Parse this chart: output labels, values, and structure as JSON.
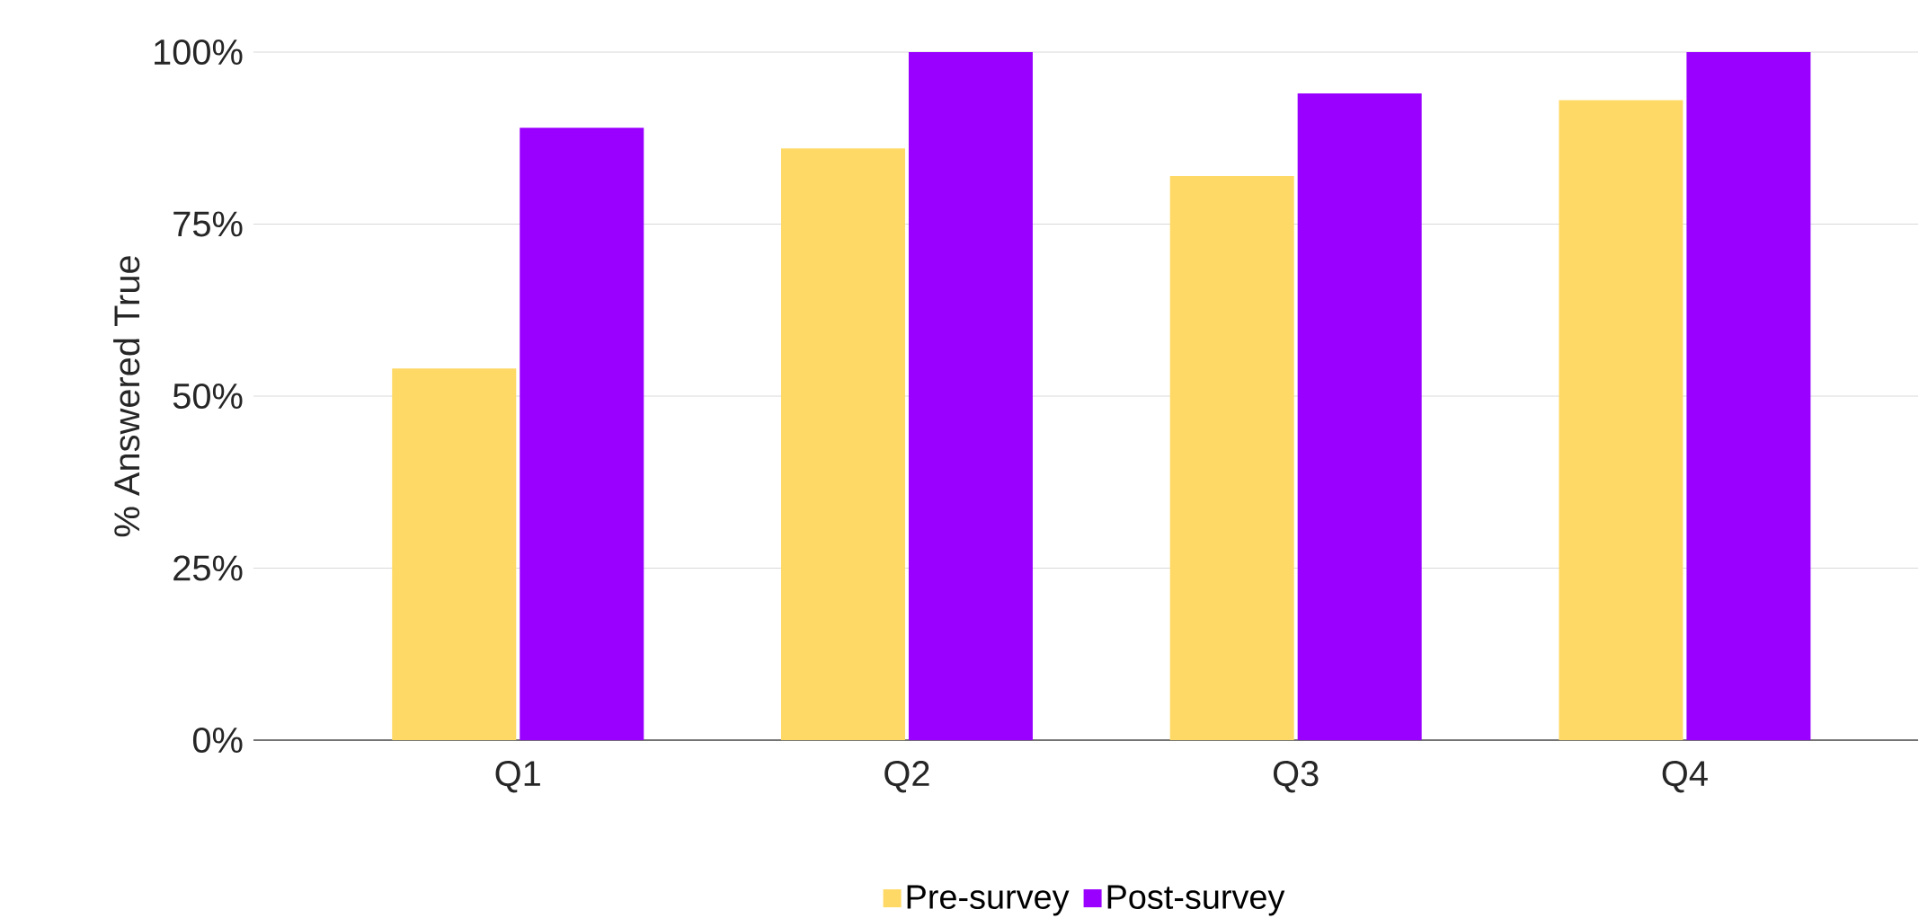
{
  "chart_data": {
    "type": "bar",
    "ylabel": "% Answered True",
    "categories": [
      "Q1",
      "Q2",
      "Q3",
      "Q4"
    ],
    "series": [
      {
        "name": "Pre-survey",
        "color": "#ffd966",
        "values": [
          54,
          86,
          82,
          93
        ]
      },
      {
        "name": "Post-survey",
        "color": "#9900ff",
        "values": [
          89,
          100,
          94,
          100
        ]
      }
    ],
    "ylim": [
      0,
      100
    ],
    "yticks": [
      {
        "value": 0,
        "label": "0%"
      },
      {
        "value": 25,
        "label": "25%"
      },
      {
        "value": 50,
        "label": "50%"
      },
      {
        "value": 75,
        "label": "75%"
      },
      {
        "value": 100,
        "label": "100%"
      }
    ],
    "grid": "y",
    "legend": "bottom"
  }
}
